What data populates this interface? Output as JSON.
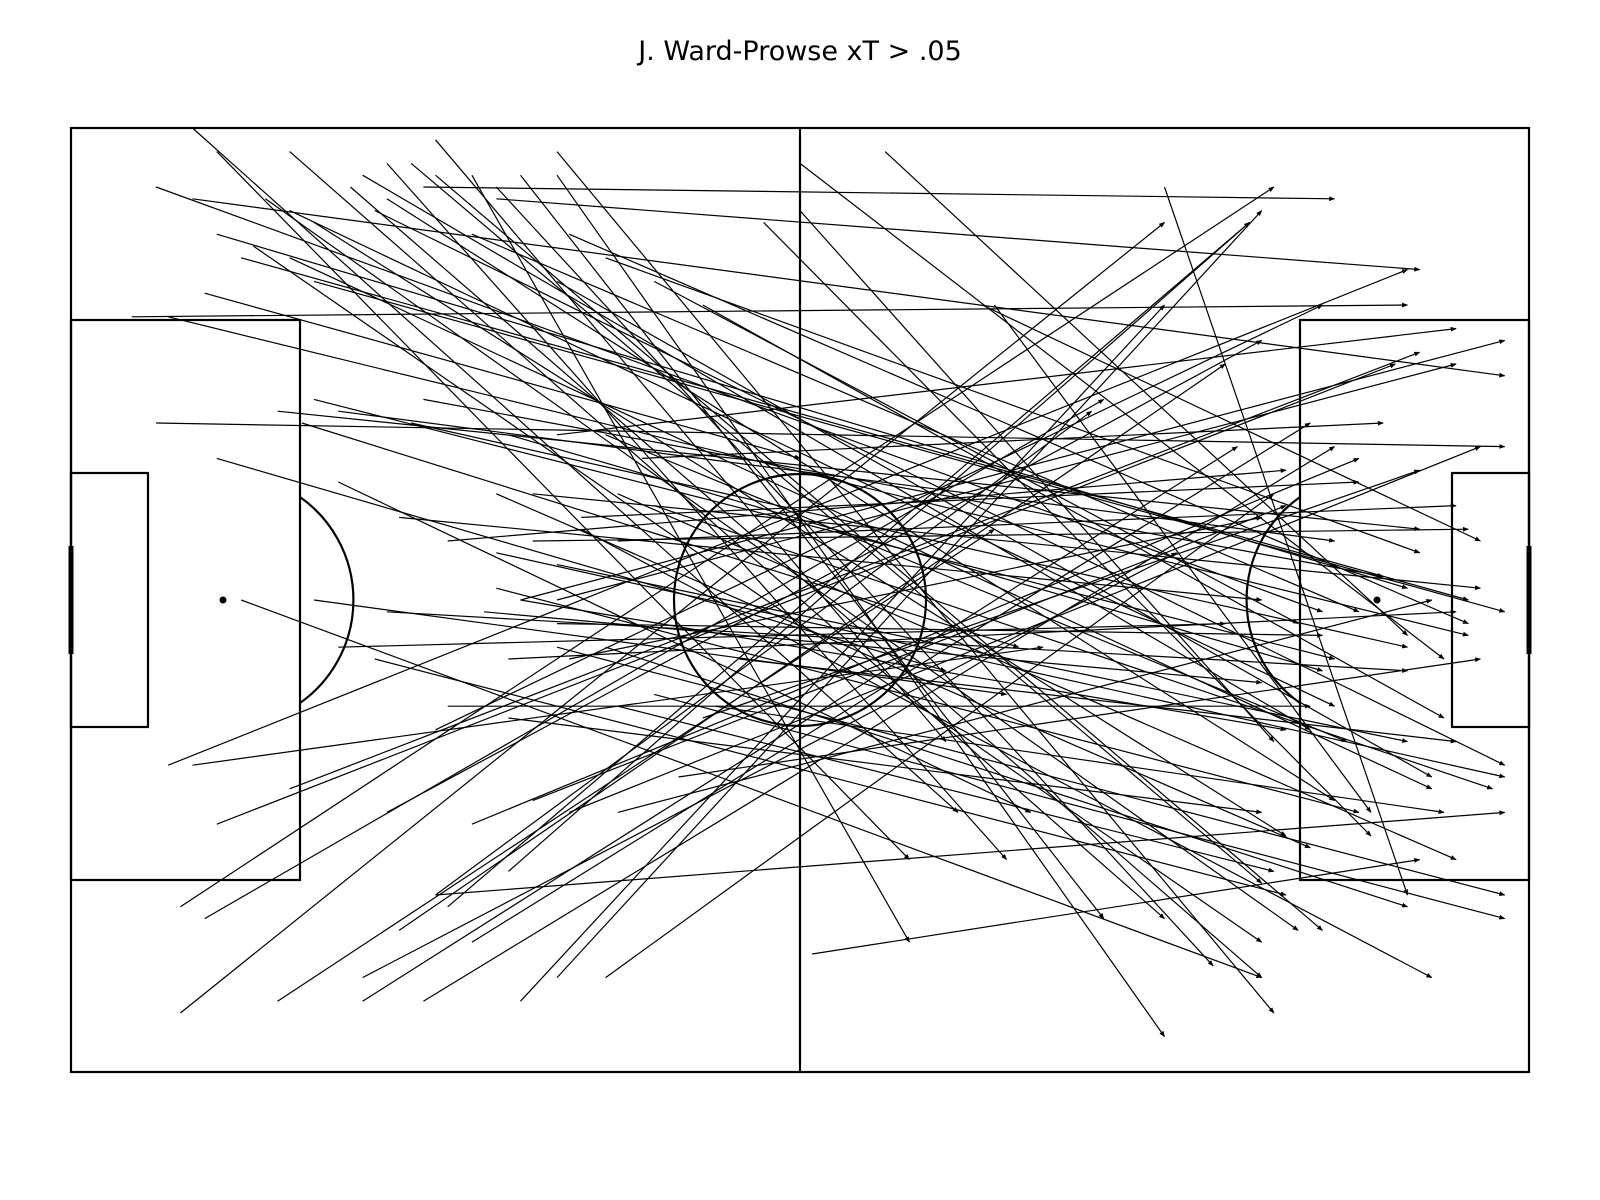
{
  "title": "J. Ward-Prowse xT > .05",
  "colors": {
    "background": "#ffffff",
    "lines": "#000000",
    "arrows": "#000000"
  },
  "pitch": {
    "length": 120,
    "width": 80
  },
  "chart_data": {
    "type": "pass-map",
    "title": "J. Ward-Prowse xT > .05",
    "units": "pitch coordinates (0-120 x 0-80)",
    "passes": [
      [
        10,
        0,
        73,
        58
      ],
      [
        12,
        2,
        69,
        62
      ],
      [
        18,
        2,
        90,
        67
      ],
      [
        26,
        3,
        77,
        62
      ],
      [
        28,
        3,
        98,
        64
      ],
      [
        30,
        1,
        72,
        52
      ],
      [
        30,
        4,
        103,
        68
      ],
      [
        33,
        4,
        69,
        69
      ],
      [
        37,
        4,
        85,
        67
      ],
      [
        40,
        2,
        99,
        75
      ],
      [
        40,
        4,
        90,
        77
      ],
      [
        35,
        5,
        94,
        71
      ],
      [
        23,
        5,
        98,
        72
      ],
      [
        16,
        6,
        101,
        68
      ],
      [
        15,
        10,
        98,
        69
      ],
      [
        20,
        8,
        100,
        60
      ],
      [
        18,
        11,
        112,
        56
      ],
      [
        8,
        16,
        115,
        43
      ],
      [
        12,
        9,
        110,
        39
      ],
      [
        14,
        11,
        115,
        40
      ],
      [
        20,
        13,
        118,
        41
      ],
      [
        28,
        25,
        110,
        44
      ],
      [
        29,
        23,
        108,
        38
      ],
      [
        36,
        26,
        103,
        46
      ],
      [
        38,
        31,
        116,
        39
      ],
      [
        34,
        41,
        98,
        47
      ],
      [
        22,
        24,
        104,
        35
      ],
      [
        31,
        35,
        100,
        29
      ],
      [
        38,
        35,
        115,
        34
      ],
      [
        42,
        33,
        106,
        30
      ],
      [
        40,
        26,
        114,
        17
      ],
      [
        24,
        4,
        102,
        51
      ],
      [
        25,
        7,
        118,
        54
      ],
      [
        18,
        7,
        104,
        49
      ],
      [
        26,
        6,
        104,
        57
      ],
      [
        33,
        9,
        106,
        41
      ],
      [
        41,
        9,
        115,
        42
      ],
      [
        44,
        11,
        111,
        36
      ],
      [
        48,
        13,
        101,
        42
      ],
      [
        52,
        15,
        113,
        50
      ],
      [
        57,
        8,
        107,
        60
      ],
      [
        60,
        3,
        113,
        45
      ],
      [
        60,
        7,
        99,
        52
      ],
      [
        40,
        13,
        112,
        55
      ],
      [
        44,
        26,
        105,
        52
      ],
      [
        45,
        35,
        114,
        32
      ],
      [
        47,
        28,
        108,
        25
      ],
      [
        27,
        33,
        98,
        40
      ],
      [
        40,
        40,
        114,
        20
      ],
      [
        37,
        40,
        118,
        18
      ],
      [
        5,
        16,
        110,
        15
      ],
      [
        7,
        5,
        103,
        41
      ],
      [
        10,
        6,
        118,
        21
      ],
      [
        7,
        25,
        118,
        27
      ],
      [
        17,
        24,
        111,
        34
      ],
      [
        20,
        23,
        104,
        45
      ],
      [
        12,
        28,
        72,
        46
      ],
      [
        19,
        25,
        78,
        44
      ],
      [
        22,
        30,
        79,
        58
      ],
      [
        11,
        14,
        60,
        28
      ],
      [
        29,
        5,
        104,
        6
      ],
      [
        35,
        6,
        111,
        12
      ],
      [
        67,
        2,
        110,
        43
      ],
      [
        75,
        15,
        116,
        35
      ],
      [
        26,
        58,
        98,
        18
      ],
      [
        30,
        51,
        103,
        15
      ],
      [
        27,
        68,
        95,
        20
      ],
      [
        9,
        66,
        99,
        5
      ],
      [
        11,
        67,
        85,
        23
      ],
      [
        18,
        56,
        111,
        19
      ],
      [
        12,
        59,
        109,
        20
      ],
      [
        9,
        75,
        90,
        8
      ],
      [
        8,
        54,
        110,
        12
      ],
      [
        17,
        74,
        76,
        34
      ],
      [
        24,
        74,
        96,
        27
      ],
      [
        24,
        72,
        91,
        36
      ],
      [
        29,
        74,
        104,
        27
      ],
      [
        37,
        74,
        90,
        15
      ],
      [
        38,
        57,
        100,
        32
      ],
      [
        33,
        69,
        102,
        25
      ],
      [
        33,
        59,
        106,
        28
      ],
      [
        31,
        66,
        97,
        8
      ],
      [
        36,
        63,
        97,
        8
      ],
      [
        40,
        72,
        98,
        7
      ],
      [
        44,
        72,
        99,
        31
      ],
      [
        45,
        58,
        112,
        40
      ],
      [
        36,
        45,
        114,
        41
      ],
      [
        40,
        42,
        103,
        43
      ],
      [
        52,
        50,
        111,
        29
      ],
      [
        50,
        55,
        116,
        45
      ],
      [
        41,
        58,
        116,
        27
      ],
      [
        30,
        65,
        84,
        24
      ],
      [
        61,
        70,
        111,
        62
      ],
      [
        36,
        50,
        98,
        58
      ],
      [
        55,
        45,
        114,
        52
      ],
      [
        53,
        49,
        113,
        58
      ],
      [
        26,
        41,
        110,
        46
      ],
      [
        35,
        36,
        118,
        55
      ],
      [
        10,
        54,
        80,
        44
      ],
      [
        90,
        5,
        110,
        65
      ],
      [
        76,
        15,
        107,
        58
      ],
      [
        31,
        49,
        102,
        49
      ],
      [
        45,
        49,
        99,
        63
      ],
      [
        41,
        45,
        98,
        33
      ],
      [
        20,
        40,
        77,
        48
      ],
      [
        22,
        44,
        95,
        42
      ],
      [
        37,
        40,
        100,
        51
      ],
      [
        40,
        44,
        118,
        65
      ],
      [
        35,
        31,
        102,
        61
      ],
      [
        45,
        31,
        114,
        62
      ],
      [
        48,
        32,
        117,
        56
      ],
      [
        40,
        37,
        110,
        52
      ],
      [
        35,
        39,
        106,
        58
      ],
      [
        44,
        44,
        110,
        66
      ],
      [
        48,
        48,
        118,
        67
      ],
      [
        25,
        45,
        100,
        65
      ],
      [
        14,
        40,
        98,
        72
      ],
      [
        30,
        65,
        118,
        58
      ],
      [
        42,
        34,
        112,
        72
      ]
    ]
  }
}
